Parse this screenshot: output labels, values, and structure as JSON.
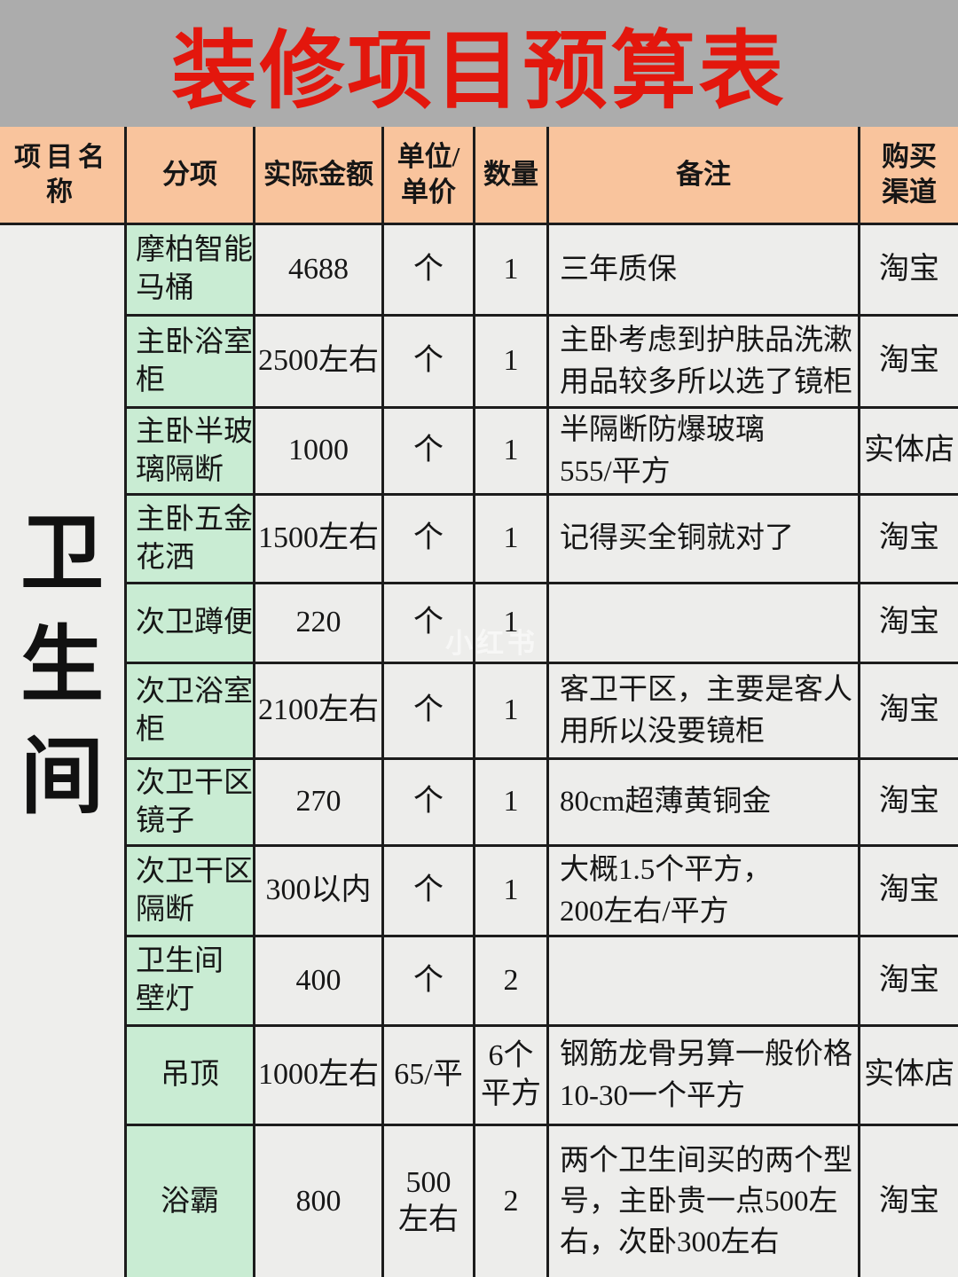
{
  "title": "装修项目预算表",
  "watermark": "小红书",
  "colors": {
    "title_bg": "#acacac",
    "title_text": "#e3170d",
    "header_bg": "#f9c49d",
    "subitem_bg": "#c9ecd3",
    "cell_bg": "#ededeb",
    "grid_line": "#1c1c1c"
  },
  "table": {
    "headers": [
      "项目名称",
      "分项",
      "实际金额",
      "单位/\n单价",
      "数量",
      "备注",
      "购买\n渠道"
    ],
    "category": "卫生间",
    "rows": [
      {
        "sub_item": "摩柏智能\n马桶",
        "amount": "4688",
        "unit": "个",
        "qty": "1",
        "remark": "三年质保",
        "channel": "淘宝"
      },
      {
        "sub_item": "主卧浴室\n柜",
        "amount": "2500左右",
        "unit": "个",
        "qty": "1",
        "remark": "主卧考虑到护肤品洗漱\n用品较多所以选了镜柜",
        "channel": "淘宝"
      },
      {
        "sub_item": "主卧半玻\n璃隔断",
        "amount": "1000",
        "unit": "个",
        "qty": "1",
        "remark": "半隔断防爆玻璃\n555/平方",
        "channel": "实体店"
      },
      {
        "sub_item": "主卧五金\n花洒",
        "amount": "1500左右",
        "unit": "个",
        "qty": "1",
        "remark": "记得买全铜就对了",
        "channel": "淘宝"
      },
      {
        "sub_item": "次卫蹲便",
        "amount": "220",
        "unit": "个",
        "qty": "1",
        "remark": "",
        "channel": "淘宝"
      },
      {
        "sub_item": "次卫浴室\n柜",
        "amount": "2100左右",
        "unit": "个",
        "qty": "1",
        "remark": "客卫干区，主要是客人\n用所以没要镜柜",
        "channel": "淘宝"
      },
      {
        "sub_item": "次卫干区\n镜子",
        "amount": "270",
        "unit": "个",
        "qty": "1",
        "remark": "80cm超薄黄铜金",
        "channel": "淘宝"
      },
      {
        "sub_item": "次卫干区\n隔断",
        "amount": "300以内",
        "unit": "个",
        "qty": "1",
        "remark": "大概1.5个平方，\n200左右/平方",
        "channel": "淘宝"
      },
      {
        "sub_item": "卫生间\n壁灯",
        "amount": "400",
        "unit": "个",
        "qty": "2",
        "remark": "",
        "channel": "淘宝"
      },
      {
        "sub_item": "吊顶",
        "amount": "1000左右",
        "unit": "65/平",
        "qty": "6个\n平方",
        "remark": "钢筋龙骨另算一般价格\n10-30一个平方",
        "channel": "实体店"
      },
      {
        "sub_item": "浴霸",
        "amount": "800",
        "unit": "500\n左右",
        "qty": "2",
        "remark": "两个卫生间买的两个型\n号，主卧贵一点500左\n右，次卧300左右",
        "channel": "淘宝"
      }
    ]
  }
}
